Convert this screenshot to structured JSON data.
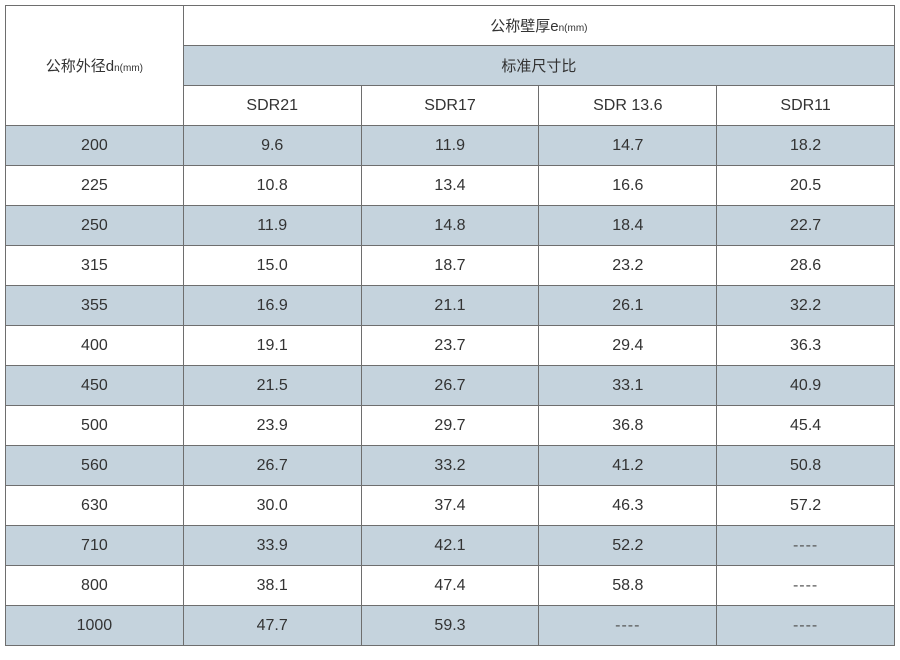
{
  "header": {
    "outer_diameter": "公称外径d",
    "outer_diameter_sub": "n(mm)",
    "wall_thickness": "公称壁厚e",
    "wall_thickness_sub": "n(mm)",
    "sdr_label": "标准尺寸比",
    "columns": [
      "SDR21",
      "SDR17",
      "SDR 13.6",
      "SDR11"
    ]
  },
  "rows": [
    [
      "200",
      "9.6",
      "11.9",
      "14.7",
      "18.2"
    ],
    [
      "225",
      "10.8",
      "13.4",
      "16.6",
      "20.5"
    ],
    [
      "250",
      "11.9",
      "14.8",
      "18.4",
      "22.7"
    ],
    [
      "315",
      "15.0",
      "18.7",
      "23.2",
      "28.6"
    ],
    [
      "355",
      "16.9",
      "21.1",
      "26.1",
      "32.2"
    ],
    [
      "400",
      "19.1",
      "23.7",
      "29.4",
      "36.3"
    ],
    [
      "450",
      "21.5",
      "26.7",
      "33.1",
      "40.9"
    ],
    [
      "500",
      "23.9",
      "29.7",
      "36.8",
      "45.4"
    ],
    [
      "560",
      "26.7",
      "33.2",
      "41.2",
      "50.8"
    ],
    [
      "630",
      "30.0",
      "37.4",
      "46.3",
      "57.2"
    ],
    [
      "710",
      "33.9",
      "42.1",
      "52.2",
      "----"
    ],
    [
      "800",
      "38.1",
      "47.4",
      "58.8",
      "----"
    ],
    [
      "1000",
      "47.7",
      "59.3",
      "----",
      "----"
    ]
  ],
  "colors": {
    "stripe": "#c5d3dd",
    "border": "#6e6e6e"
  }
}
